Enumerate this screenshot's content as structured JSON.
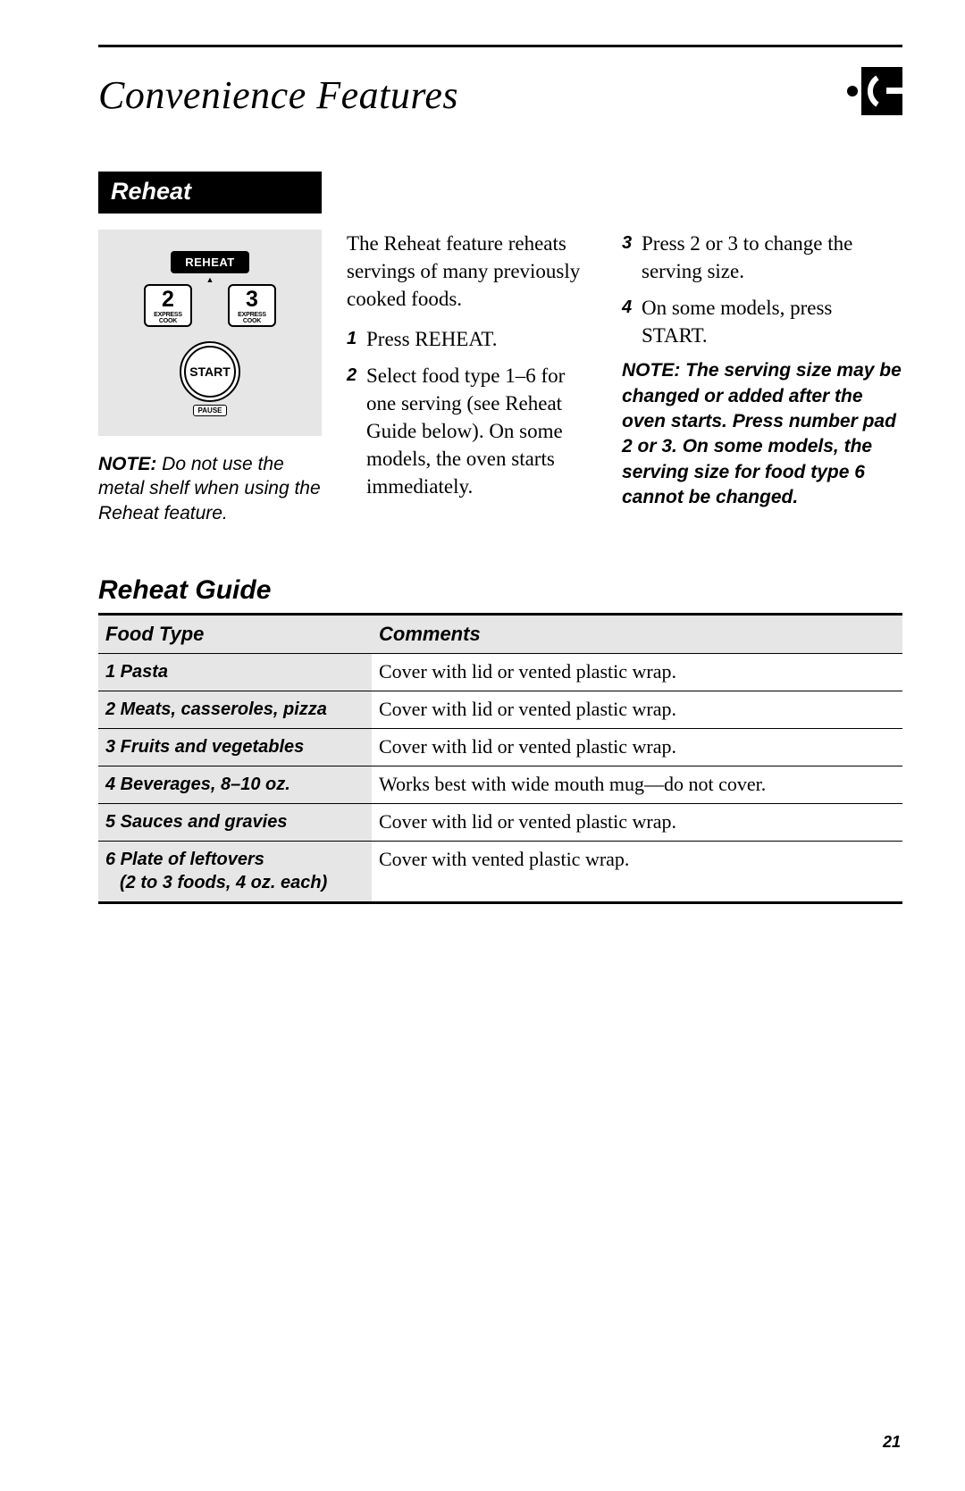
{
  "page_title": "Convenience Features",
  "section_label": "Reheat",
  "keypad": {
    "reheat_label": "REHEAT",
    "btn2": "2",
    "btn3": "3",
    "express": "EXPRESS COOK",
    "start": "START",
    "pause": "PAUSE"
  },
  "left_note_lead": "NOTE:",
  "left_note_body": " Do not use the metal shelf when using the Reheat feature.",
  "intro": "The Reheat feature reheats servings of many previously cooked foods.",
  "steps_left": [
    "Press REHEAT.",
    "Select food type 1–6 for one serving (see Reheat Guide below). On some models, the oven starts immediately."
  ],
  "steps_right": [
    "Press 2 or 3 to change the serving size.",
    "On some models, press START."
  ],
  "right_note": "NOTE: The serving size may be changed or added after the oven starts. Press number pad 2 or 3. On some models, the serving size for food type 6 cannot be changed.",
  "guide_title": "Reheat Guide",
  "guide_headers": {
    "food": "Food Type",
    "comments": "Comments"
  },
  "guide_rows": [
    {
      "n": "1",
      "food": "Pasta",
      "comment": "Cover with lid or vented plastic wrap."
    },
    {
      "n": "2",
      "food": "Meats, casseroles, pizza",
      "comment": "Cover with lid or vented plastic wrap."
    },
    {
      "n": "3",
      "food": "Fruits and vegetables",
      "comment": "Cover with lid or vented plastic wrap."
    },
    {
      "n": "4",
      "food": "Beverages, 8–10 oz.",
      "comment": "Works best with wide mouth mug—do not cover."
    },
    {
      "n": "5",
      "food": "Sauces and gravies",
      "comment": "Cover with lid or vented plastic wrap."
    },
    {
      "n": "6",
      "food": "Plate of leftovers",
      "sub": "(2 to 3 foods, 4 oz. each)",
      "comment": "Cover with vented plastic wrap."
    }
  ],
  "page_number": "21"
}
